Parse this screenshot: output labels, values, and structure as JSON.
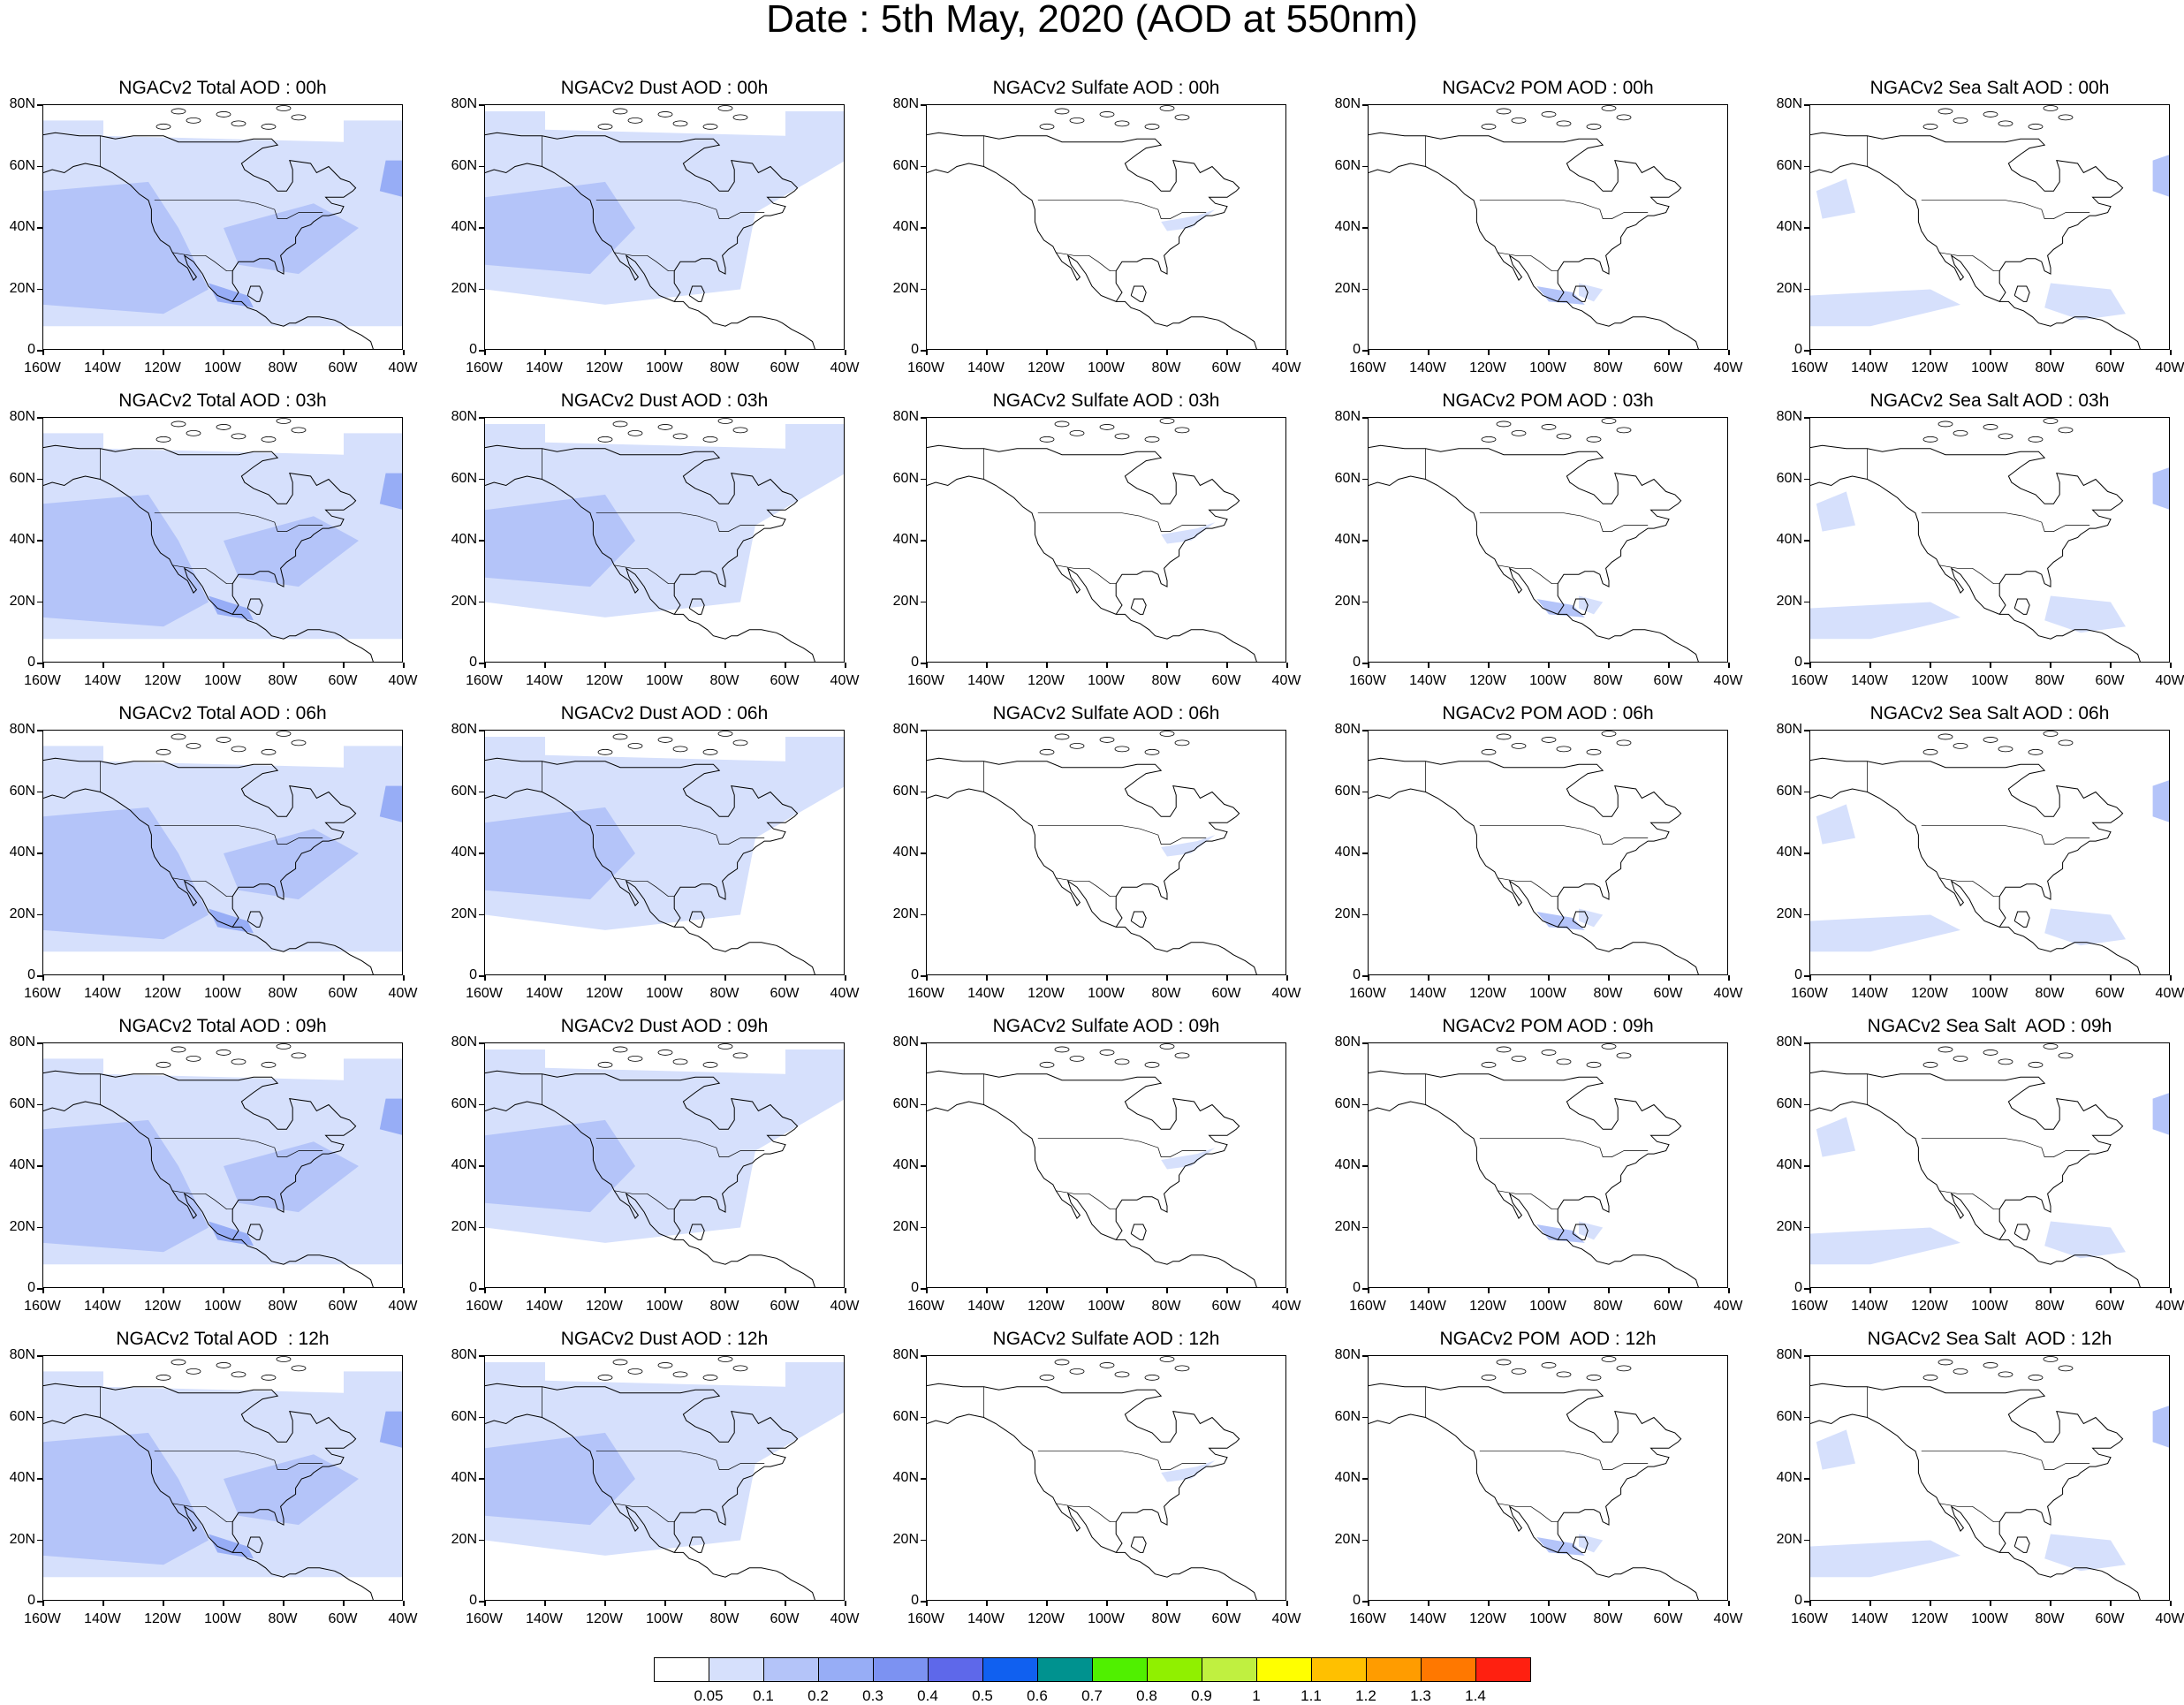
{
  "title": "Date : 5th May, 2020 (AOD at 550nm)",
  "columns": [
    {
      "key": "total",
      "shade": 1.0,
      "pattern": "total"
    },
    {
      "key": "dust",
      "shade": 0.7,
      "pattern": "dust"
    },
    {
      "key": "sulfate",
      "shade": 0.15,
      "pattern": "sulfate"
    },
    {
      "key": "pom",
      "shade": 0.15,
      "pattern": "pom"
    },
    {
      "key": "seasalt",
      "shade": 0.4,
      "pattern": "seasalt"
    }
  ],
  "panels": [
    [
      "NGACv2 Total AOD : 00h",
      "NGACv2 Dust AOD : 00h",
      "NGACv2 Sulfate AOD : 00h",
      "NGACv2 POM AOD : 00h",
      "NGACv2 Sea Salt AOD : 00h"
    ],
    [
      "NGACv2 Total AOD : 03h",
      "NGACv2 Dust AOD : 03h",
      "NGACv2 Sulfate AOD : 03h",
      "NGACv2 POM AOD : 03h",
      "NGACv2 Sea Salt AOD : 03h"
    ],
    [
      "NGACv2 Total AOD : 06h",
      "NGACv2 Dust AOD : 06h",
      "NGACv2 Sulfate AOD : 06h",
      "NGACv2 POM AOD : 06h",
      "NGACv2 Sea Salt AOD : 06h"
    ],
    [
      "NGACv2 Total AOD : 09h",
      "NGACv2 Dust AOD : 09h",
      "NGACv2 Sulfate AOD : 09h",
      "NGACv2 POM AOD : 09h",
      "NGACv2 Sea Salt  AOD : 09h"
    ],
    [
      "NGACv2 Total AOD  : 12h",
      "NGACv2 Dust AOD : 12h",
      "NGACv2 Sulfate AOD : 12h",
      "NGACv2 POM  AOD : 12h",
      "NGACv2 Sea Salt  AOD : 12h"
    ]
  ],
  "lat_labels": [
    "80N",
    "60N",
    "40N",
    "20N",
    "0"
  ],
  "lon_labels": [
    "160W",
    "140W",
    "120W",
    "100W",
    "80W",
    "60W",
    "40W"
  ],
  "colorbar": {
    "colors": [
      "#ffffff",
      "#d6e0fc",
      "#b4c4f9",
      "#97adf6",
      "#7c92f2",
      "#5e68ea",
      "#1060f0",
      "#00928f",
      "#50f000",
      "#90f000",
      "#c0f040",
      "#ffff00",
      "#ffc000",
      "#ff9c00",
      "#ff7800",
      "#ff2010"
    ],
    "labels": [
      "0.05",
      "0.1",
      "0.2",
      "0.3",
      "0.4",
      "0.5",
      "0.6",
      "0.7",
      "0.8",
      "0.9",
      "1",
      "1.1",
      "1.2",
      "1.3",
      "1.4"
    ]
  }
}
